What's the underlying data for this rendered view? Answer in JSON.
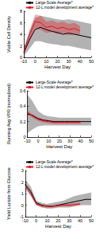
{
  "chart_data": [
    {
      "type": "line",
      "x_label": "Harvest Day",
      "y_label": "Viable Cell Density",
      "x": [
        -10,
        -5,
        0,
        5,
        10,
        15,
        20,
        25,
        30,
        35,
        40,
        45,
        50
      ],
      "xlim": [
        -10,
        50
      ],
      "xticks": [
        -10,
        0,
        10,
        20,
        30,
        40,
        50
      ],
      "ylim": [
        0,
        8
      ],
      "yticks": [
        0,
        2,
        4,
        6,
        8
      ],
      "grid": false,
      "legend": "top",
      "series": [
        {
          "name": "Large-Scale Average*",
          "color": "#000000",
          "values": [
            0.8,
            3.0,
            4.8,
            5.2,
            4.8,
            4.5,
            4.3,
            4.0,
            4.2,
            4.0,
            3.8,
            3.6,
            3.4
          ],
          "lower": [
            0.2,
            1.5,
            2.8,
            2.8,
            2.5,
            2.3,
            2.2,
            2.0,
            2.0,
            1.8,
            1.6,
            1.4,
            1.2
          ],
          "upper": [
            1.6,
            4.5,
            6.8,
            7.2,
            7.0,
            6.8,
            6.6,
            6.5,
            6.6,
            6.4,
            6.2,
            6.0,
            5.8
          ]
        },
        {
          "name": "12-L model development average*",
          "color": "#e8141c",
          "values": [
            1.0,
            3.8,
            6.2,
            6.0,
            5.2,
            5.4,
            5.0,
            5.2,
            4.8,
            5.0,
            4.6,
            null,
            null
          ],
          "lower": [
            0.6,
            3.0,
            5.0,
            4.8,
            4.2,
            4.4,
            4.0,
            4.2,
            3.8,
            4.0,
            3.8,
            null,
            null
          ],
          "upper": [
            1.4,
            4.6,
            7.4,
            7.2,
            6.2,
            6.4,
            6.0,
            6.2,
            5.8,
            6.0,
            5.4,
            null,
            null
          ]
        }
      ]
    },
    {
      "type": "line",
      "x_label": "Harvest Day",
      "y_label": "Running Avg VPR (normalized)",
      "x": [
        -10,
        -5,
        0,
        5,
        10,
        15,
        20,
        25,
        30,
        35,
        40,
        45,
        50
      ],
      "xlim": [
        -10,
        50
      ],
      "xticks": [
        -10,
        0,
        10,
        20,
        30,
        40,
        50
      ],
      "ylim": [
        0,
        0.6
      ],
      "yticks": [
        0,
        0.2,
        0.4,
        0.6
      ],
      "grid": false,
      "legend": "top",
      "series": [
        {
          "name": "Large-Scale Average*",
          "color": "#000000",
          "values": [
            0.3,
            0.28,
            0.24,
            0.22,
            0.21,
            0.2,
            0.2,
            0.2,
            0.2,
            0.2,
            0.2,
            0.2,
            0.2
          ],
          "lower": [
            0.05,
            0.1,
            0.14,
            0.15,
            0.15,
            0.15,
            0.15,
            0.15,
            0.15,
            0.15,
            0.15,
            0.15,
            0.15
          ],
          "upper": [
            0.55,
            0.46,
            0.34,
            0.29,
            0.27,
            0.26,
            0.25,
            0.25,
            0.25,
            0.25,
            0.25,
            0.25,
            0.25
          ]
        },
        {
          "name": "12-L model development average*",
          "color": "#e8141c",
          "values": [
            0.32,
            0.27,
            0.23,
            0.21,
            0.2,
            0.19,
            0.19,
            0.19,
            0.19,
            0.19,
            0.19,
            null,
            null
          ],
          "lower": [
            0.29,
            0.25,
            0.21,
            0.19,
            0.18,
            0.17,
            0.17,
            0.17,
            0.17,
            0.17,
            0.17,
            null,
            null
          ],
          "upper": [
            0.35,
            0.29,
            0.25,
            0.23,
            0.22,
            0.21,
            0.21,
            0.21,
            0.21,
            0.21,
            0.21,
            null,
            null
          ]
        }
      ]
    },
    {
      "type": "line",
      "x_label": "Harvest Day",
      "y_label": "Yield Lactate from Glucose",
      "x": [
        -10,
        -5,
        0,
        5,
        10,
        15,
        20,
        25,
        30,
        35,
        40,
        45,
        50
      ],
      "xlim": [
        -10,
        50
      ],
      "xticks": [
        -10,
        0,
        10,
        20,
        30,
        40,
        50
      ],
      "ylim": [
        -1,
        3
      ],
      "yticks": [
        -1,
        0,
        1,
        2,
        3
      ],
      "grid": false,
      "legend": "top",
      "series": [
        {
          "name": "Large-Scale Average*",
          "color": "#000000",
          "values": [
            1.8,
            1.2,
            0.2,
            0.0,
            -0.1,
            -0.1,
            0.0,
            0.1,
            0.2,
            0.3,
            0.4,
            0.5,
            0.5
          ],
          "lower": [
            1.4,
            0.8,
            0.0,
            -0.2,
            -0.3,
            -0.3,
            -0.2,
            -0.2,
            -0.2,
            -0.1,
            0.0,
            0.0,
            0.0
          ],
          "upper": [
            2.2,
            1.6,
            0.4,
            0.2,
            0.1,
            0.2,
            0.3,
            0.4,
            0.6,
            0.8,
            0.9,
            1.0,
            1.1
          ]
        },
        {
          "name": "12-L model development average*",
          "color": "#e8141c",
          "values": [
            1.7,
            1.0,
            0.1,
            -0.05,
            -0.1,
            -0.1,
            -0.05,
            0.0,
            0.0,
            0.05,
            0.1,
            null,
            null
          ],
          "lower": [
            1.6,
            0.9,
            0.0,
            -0.15,
            -0.2,
            -0.2,
            -0.15,
            -0.1,
            -0.1,
            -0.05,
            0.0,
            null,
            null
          ],
          "upper": [
            1.8,
            1.1,
            0.2,
            0.05,
            0.0,
            0.0,
            0.05,
            0.1,
            0.1,
            0.15,
            0.2,
            null,
            null
          ]
        }
      ]
    }
  ]
}
